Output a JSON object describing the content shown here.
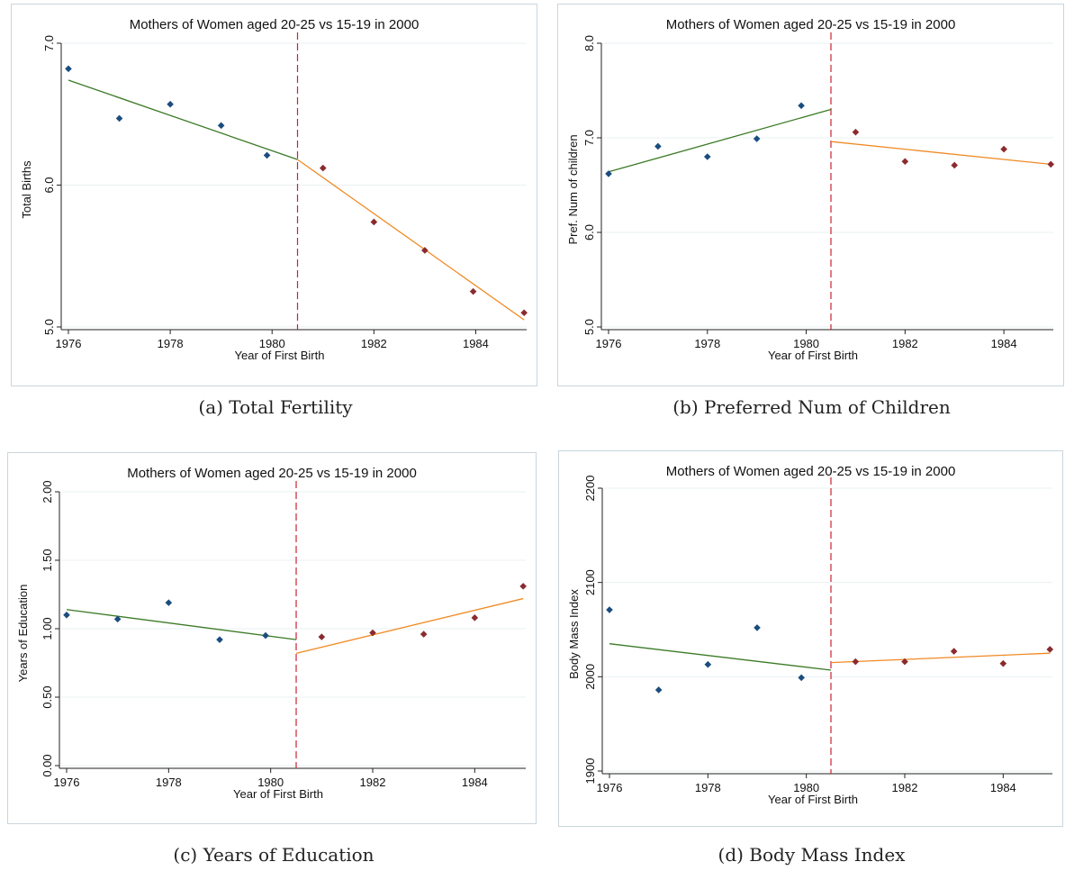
{
  "colors": {
    "frame": "#c9d5dc",
    "grid": "#eaf0f3",
    "axis": "#222222",
    "before_points": "#1b4d7e",
    "after_points": "#8b2a2e",
    "before_fit": "#3b7a26",
    "after_fit": "#f08a24",
    "cutoff": "#cc2233"
  },
  "chart_data": [
    {
      "type": "scatter",
      "title": "Mothers of Women aged 20-25 vs 15-19 in 2000",
      "caption": "(a) Total Fertility",
      "xlabel": "Year of First Birth",
      "ylabel": "Total Births",
      "xlim": [
        1976,
        1985
      ],
      "ylim": [
        5.0,
        7.0
      ],
      "xticks": [
        1976,
        1978,
        1980,
        1982,
        1984
      ],
      "yticks": [
        "5.0",
        "6.0",
        "7.0"
      ],
      "cutoff": 1980.5,
      "series": [
        {
          "x": [
            1976.0,
            1977.0,
            1978.0,
            1979.0,
            1979.9
          ],
          "y": [
            6.82,
            6.47,
            6.57,
            6.42,
            6.21
          ]
        },
        {
          "x": [
            1981.0,
            1982.0,
            1983.0,
            1983.95,
            1984.95
          ],
          "y": [
            6.12,
            5.74,
            5.54,
            5.25,
            5.1
          ]
        }
      ],
      "fits": [
        {
          "x": [
            1976.0,
            1980.5
          ],
          "y": [
            6.74,
            6.18
          ]
        },
        {
          "x": [
            1980.5,
            1984.95
          ],
          "y": [
            6.18,
            5.05
          ]
        }
      ]
    },
    {
      "type": "scatter",
      "title": "Mothers of Women aged 20-25 vs 15-19 in 2000",
      "caption": "(b) Preferred Num of Children",
      "xlabel": "Year of First Birth",
      "ylabel": "Pref. Num of children",
      "xlim": [
        1976,
        1985
      ],
      "ylim": [
        5.0,
        8.0
      ],
      "xticks": [
        1976,
        1978,
        1980,
        1982,
        1984
      ],
      "yticks": [
        "5.0",
        "6.0",
        "7.0",
        "8.0"
      ],
      "cutoff": 1980.5,
      "series": [
        {
          "x": [
            1976.0,
            1977.0,
            1978.0,
            1979.0,
            1979.9
          ],
          "y": [
            6.62,
            6.91,
            6.8,
            6.99,
            7.34
          ]
        },
        {
          "x": [
            1981.0,
            1982.0,
            1983.0,
            1984.0,
            1984.95
          ],
          "y": [
            7.06,
            6.75,
            6.71,
            6.88,
            6.72
          ]
        }
      ],
      "fits": [
        {
          "x": [
            1976.0,
            1980.5
          ],
          "y": [
            6.64,
            7.3
          ]
        },
        {
          "x": [
            1980.5,
            1984.95
          ],
          "y": [
            6.96,
            6.72
          ]
        }
      ]
    },
    {
      "type": "scatter",
      "title": "Mothers of Women aged 20-25 vs 15-19 in 2000",
      "caption": "(c) Years of Education",
      "xlabel": "Year of First Birth",
      "ylabel": "Years of Education",
      "xlim": [
        1976,
        1985
      ],
      "ylim": [
        0.0,
        2.0
      ],
      "xticks": [
        1976,
        1978,
        1980,
        1982,
        1984
      ],
      "yticks": [
        "0.00",
        "0.50",
        "1.00",
        "1.50",
        "2.00"
      ],
      "cutoff": 1980.5,
      "series": [
        {
          "x": [
            1976.0,
            1977.0,
            1978.0,
            1979.0,
            1979.9
          ],
          "y": [
            1.1,
            1.07,
            1.19,
            0.92,
            0.95
          ]
        },
        {
          "x": [
            1981.0,
            1982.0,
            1983.0,
            1984.0,
            1984.95
          ],
          "y": [
            0.94,
            0.97,
            0.96,
            1.08,
            1.31
          ]
        }
      ],
      "fits": [
        {
          "x": [
            1976.0,
            1980.5
          ],
          "y": [
            1.14,
            0.92
          ]
        },
        {
          "x": [
            1980.5,
            1984.95
          ],
          "y": [
            0.82,
            1.22
          ]
        }
      ]
    },
    {
      "type": "scatter",
      "title": "Mothers of Women aged 20-25 vs 15-19 in 2000",
      "caption": "(d) Body Mass Index",
      "xlabel": "Year of First Birth",
      "ylabel": "Body Mass Index",
      "xlim": [
        1976,
        1985
      ],
      "ylim": [
        1900,
        2200
      ],
      "xticks": [
        1976,
        1978,
        1980,
        1982,
        1984
      ],
      "yticks": [
        "1900",
        "2000",
        "2100",
        "2200"
      ],
      "cutoff": 1980.5,
      "series": [
        {
          "x": [
            1976.0,
            1977.0,
            1978.0,
            1979.0,
            1979.9
          ],
          "y": [
            2071,
            1986,
            2013,
            2052,
            1999
          ]
        },
        {
          "x": [
            1981.0,
            1982.0,
            1983.0,
            1984.0,
            1984.95
          ],
          "y": [
            2016,
            2016,
            2027,
            2014,
            2029
          ]
        }
      ],
      "fits": [
        {
          "x": [
            1976.0,
            1980.5
          ],
          "y": [
            2035,
            2007
          ]
        },
        {
          "x": [
            1980.5,
            1984.95
          ],
          "y": [
            2015,
            2025
          ]
        }
      ]
    }
  ]
}
